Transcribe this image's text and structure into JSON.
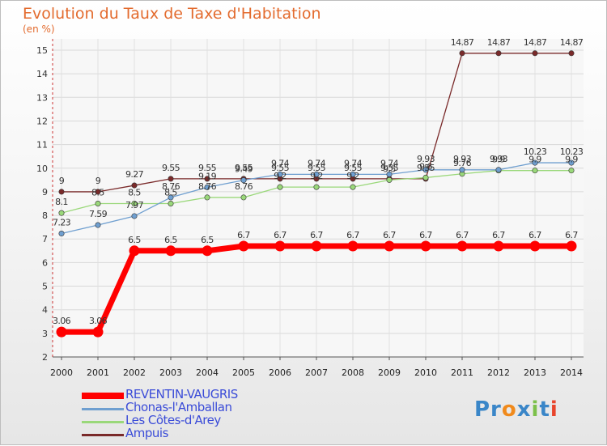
{
  "chart_data": {
    "type": "line",
    "title": "Evolution du Taux de Taxe d'Habitation",
    "ylabel": "(en %)",
    "ylim": [
      2,
      15
    ],
    "yticks": [
      2,
      3,
      4,
      5,
      6,
      7,
      8,
      9,
      10,
      11,
      12,
      13,
      14,
      15
    ],
    "x": [
      "2000",
      "2001",
      "2002",
      "2003",
      "2004",
      "2005",
      "2006",
      "2007",
      "2008",
      "2009",
      "2010",
      "2011",
      "2012",
      "2013",
      "2014"
    ],
    "grid": true,
    "legend_position": "bottom-left",
    "series": [
      {
        "name": "REVENTIN-VAUGRIS",
        "color": "#ff0000",
        "values": [
          3.06,
          3.06,
          6.5,
          6.5,
          6.5,
          6.7,
          6.7,
          6.7,
          6.7,
          6.7,
          6.7,
          6.7,
          6.7,
          6.7,
          6.7
        ],
        "labels": [
          "3.06",
          "3.06",
          "6.5",
          "6.5",
          "6.5",
          "6.7",
          "6.7",
          "6.7",
          "6.7",
          "6.7",
          "6.7",
          "6.7",
          "6.7",
          "6.7",
          "6.7"
        ]
      },
      {
        "name": "Chonas-l'Amballan",
        "color": "#6f9fd0",
        "values": [
          7.23,
          7.59,
          7.97,
          8.76,
          9.19,
          9.49,
          9.74,
          9.74,
          9.74,
          9.74,
          9.93,
          9.93,
          9.93,
          10.23,
          10.23
        ],
        "labels": [
          "7.23",
          "7.59",
          "7.97",
          "8.76",
          "9.19",
          "9.49",
          "9.74",
          "9.74",
          "9.74",
          "9.74",
          "9.93",
          "9.93",
          "9.93",
          "10.23",
          "10.23"
        ]
      },
      {
        "name": "Les Côtes-d'Arey",
        "color": "#9ad87a",
        "values": [
          8.1,
          8.5,
          8.5,
          8.5,
          8.76,
          8.76,
          9.2,
          9.2,
          9.2,
          9.5,
          9.6,
          9.76,
          9.9,
          9.9,
          9.9
        ],
        "labels": [
          "8.1",
          "8.5",
          "8.5",
          "8.5",
          "8.76",
          "8.76",
          "9.2",
          "9.2",
          "9.2",
          "9.5",
          "9.6",
          "9.76",
          "9.9",
          "9.9",
          "9.9"
        ]
      },
      {
        "name": "Ampuis",
        "color": "#7a2a2a",
        "values": [
          9,
          9,
          9.27,
          9.55,
          9.55,
          9.55,
          9.55,
          9.55,
          9.55,
          9.55,
          9.55,
          14.87,
          14.87,
          14.87,
          14.87
        ],
        "labels": [
          "9",
          "9",
          "9.27",
          "9.55",
          "9.55",
          "9.55",
          "9.55",
          "9.55",
          "9.55",
          "9.55",
          "9.55",
          "14.87",
          "14.87",
          "14.87",
          "14.87"
        ]
      }
    ]
  },
  "logo_text": "Proxiti"
}
